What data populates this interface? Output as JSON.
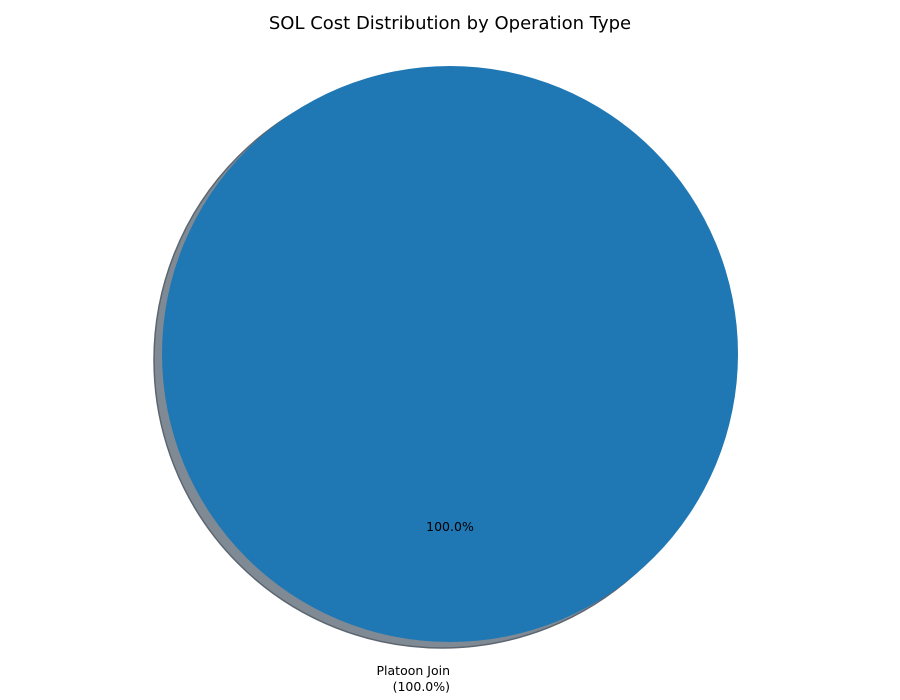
{
  "chart_data": {
    "type": "pie",
    "title": "SOL Cost Distribution by Operation Type",
    "categories": [
      "Platoon Join"
    ],
    "values": [
      100.0
    ],
    "autopct_labels": [
      "100.0%"
    ],
    "slice_labels": [
      {
        "name": "Platoon Join",
        "pct": "(100.0%)"
      }
    ],
    "colors": [
      "#1f77b4"
    ],
    "shadow": true,
    "shadow_color": "#7f8a94",
    "legend": "none",
    "grid": false
  }
}
